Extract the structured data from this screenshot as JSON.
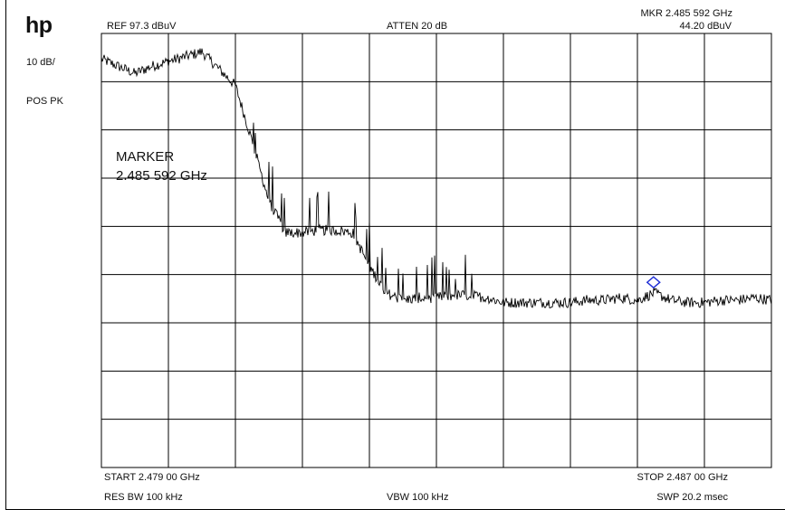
{
  "instrument": {
    "logo": "hp",
    "scale": "10 dB/",
    "detector": "POS PK",
    "ref_level": "REF  97.3 dBuV",
    "attenuation": "ATTEN 20 dB",
    "marker_readout_freq": "MKR 2.485 592 GHz",
    "marker_readout_ampl": "44.20 dBuV",
    "start": "START 2.479 00 GHz",
    "stop": "STOP 2.487 00 GHz",
    "rbw": "RES BW 100 kHz",
    "vbw": "VBW 100 kHz",
    "sweep": "SWP 20.2 msec",
    "marker_label": "MARKER",
    "marker_value": "2.485 592 GHz"
  },
  "colors": {
    "trace": "#000000",
    "grid": "#000000",
    "marker": "#1f2fd6"
  },
  "chart_data": {
    "type": "line",
    "title": "",
    "xlabel": "",
    "ylabel": "",
    "x_unit": "GHz",
    "y_unit": "dBuV",
    "xlim": [
      2.479,
      2.487
    ],
    "ylim": [
      7.3,
      97.3
    ],
    "grid": true,
    "grid_divisions": {
      "x": 10,
      "y": 9
    },
    "marker": {
      "x": 2.485592,
      "y": 44.2,
      "shape": "diamond"
    },
    "series": [
      {
        "x": [
          2.479,
          2.4792,
          2.4794,
          2.4796,
          2.4798,
          2.48,
          2.4802,
          2.4804,
          2.4806,
          2.4808,
          2.481,
          2.4812,
          2.4814,
          2.4816,
          2.4818,
          2.482,
          2.4822,
          2.4824,
          2.4826,
          2.4828,
          2.483,
          2.4832,
          2.4834,
          2.4836,
          2.4838,
          2.484,
          2.4842,
          2.4844,
          2.4846,
          2.4848,
          2.485,
          2.4852,
          2.4854,
          2.4856,
          2.4858,
          2.486,
          2.4862,
          2.4864,
          2.4866,
          2.4868,
          2.487
        ],
        "y": [
          92.0,
          90.5,
          89.0,
          90.5,
          91.5,
          92.5,
          93.5,
          90.0,
          86.5,
          75.0,
          62.5,
          56.0,
          56.0,
          56.5,
          56.5,
          56.0,
          49.0,
          43.5,
          42.0,
          42.5,
          42.5,
          43.0,
          43.0,
          42.5,
          41.5,
          41.5,
          41.5,
          41.5,
          41.5,
          42.0,
          42.0,
          42.5,
          42.0,
          43.5,
          42.0,
          41.5,
          41.5,
          42.0,
          42.0,
          42.5,
          42.0
        ]
      }
    ]
  }
}
